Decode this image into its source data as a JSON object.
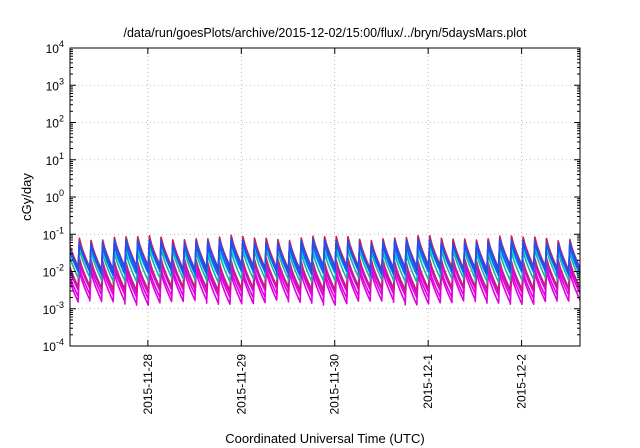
{
  "chart_data": {
    "type": "line",
    "title": "/data/run/goesPlots/archive/2015-12-02/15:00/flux/../bryn/5daysMars.plot",
    "xlabel": "Coordinated Universal Time (UTC)",
    "ylabel": "cGy/day",
    "yscale": "log",
    "ylim": [
      0.0001,
      10000
    ],
    "y_ticks": [
      {
        "base": "10",
        "exp": "-4"
      },
      {
        "base": "10",
        "exp": "-3"
      },
      {
        "base": "10",
        "exp": "-2"
      },
      {
        "base": "10",
        "exp": "-1"
      },
      {
        "base": "10",
        "exp": "0"
      },
      {
        "base": "10",
        "exp": "1"
      },
      {
        "base": "10",
        "exp": "2"
      },
      {
        "base": "10",
        "exp": "3"
      },
      {
        "base": "10",
        "exp": "4"
      }
    ],
    "x_range": [
      "2015-11-27T04:00",
      "2015-12-02T15:00"
    ],
    "x_ticks": [
      "2015-11-28",
      "2015-11-29",
      "2015-11-30",
      "2015-12-1",
      "2015-12-2"
    ],
    "grid": true,
    "legend": "none",
    "pattern": {
      "description": "periodic sawtooth bands",
      "period_hours": 3,
      "series_envelopes": [
        {
          "color": "#e000e0",
          "peak": 0.012,
          "trough": 0.0022
        },
        {
          "color": "#e000e0",
          "peak": 0.009,
          "trough": 0.0015
        },
        {
          "color": "#e000e0",
          "peak": 0.016,
          "trough": 0.003
        },
        {
          "color": "#c02080",
          "peak": 0.02,
          "trough": 0.0035
        },
        {
          "color": "#20b0a0",
          "peak": 0.035,
          "trough": 0.006
        },
        {
          "color": "#00e8e8",
          "peak": 0.045,
          "trough": 0.009
        },
        {
          "color": "#1060ff",
          "peak": 0.055,
          "trough": 0.009
        },
        {
          "color": "#3040d0",
          "peak": 0.075,
          "trough": 0.011
        },
        {
          "color": "#d02050",
          "peak": 0.08,
          "trough": 0.013
        },
        {
          "color": "#2050f0",
          "peak": 0.065,
          "trough": 0.012
        }
      ]
    }
  }
}
